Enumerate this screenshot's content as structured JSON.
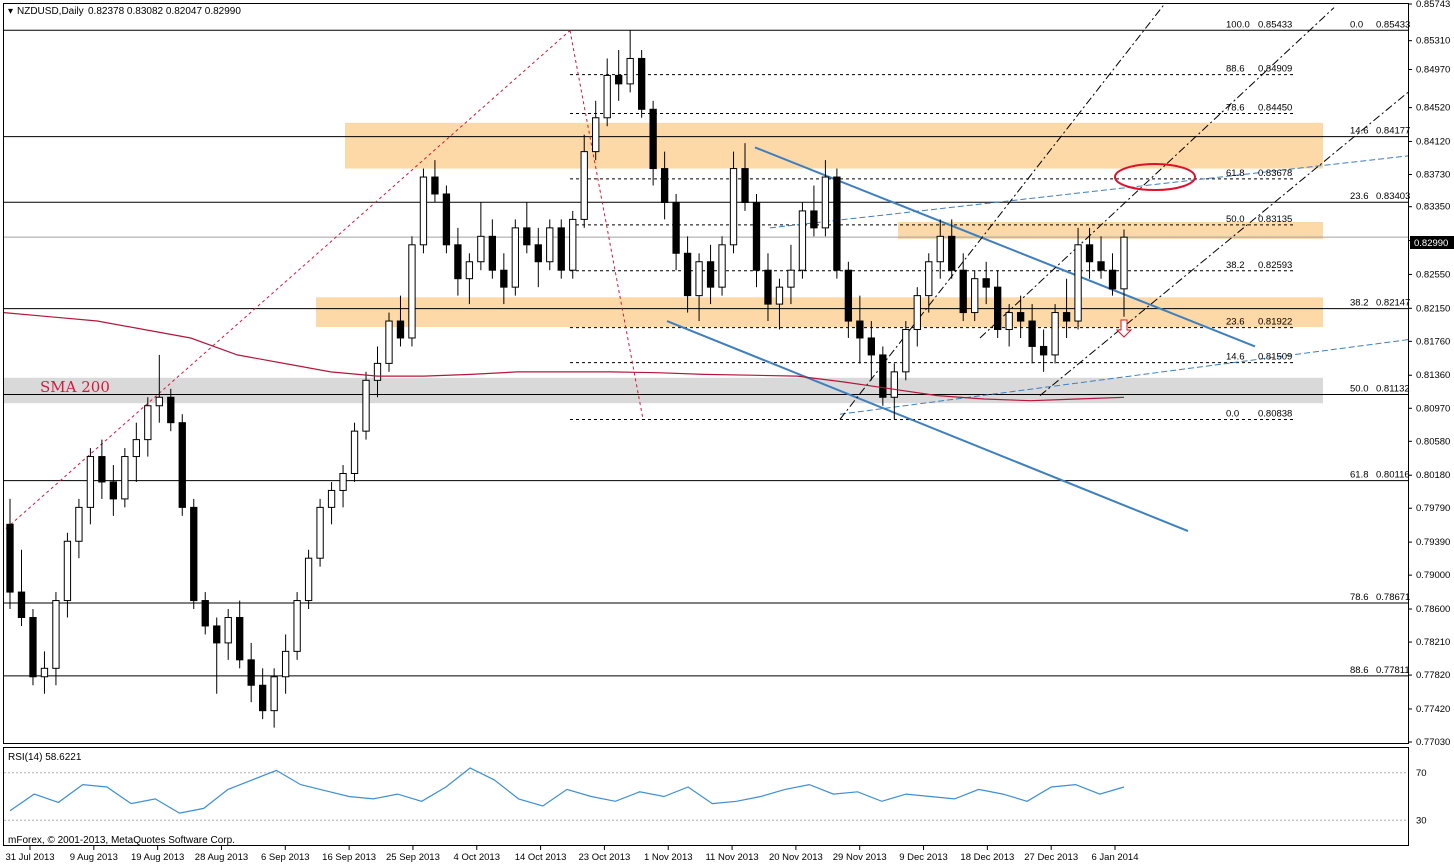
{
  "header": {
    "symbol": "NZDUSD,Daily",
    "ohlc": "0.82378 0.83082 0.82047 0.82990"
  },
  "rsi_label": "RSI(14) 58.6221",
  "sma_label": "SMA 200",
  "copyright": "mForex, © 2001-2013, MetaQuotes Software Corp.",
  "current_price": "0.82990",
  "colors": {
    "zone_orange": "#fcd9a6",
    "zone_gray": "#d9d9d9",
    "trendline": "#3e7fbf",
    "sma": "#b5163a",
    "rsi": "#3d8fd6",
    "marker": "#e0102a"
  },
  "chart_data": {
    "type": "candlestick",
    "y_range": [
      0.7703,
      0.85743
    ],
    "y_ticks": [
      "0.85743",
      "0.85310",
      "0.84970",
      "0.84520",
      "0.84120",
      "0.83730",
      "0.83350",
      "0.82950",
      "0.82550",
      "0.82150",
      "0.81760",
      "0.81360",
      "0.80970",
      "0.80580",
      "0.80180",
      "0.79790",
      "0.79390",
      "0.79000",
      "0.78600",
      "0.78210",
      "0.77820",
      "0.77420",
      "0.77030"
    ],
    "x_labels": [
      "31 Jul 2013",
      "9 Aug 2013",
      "19 Aug 2013",
      "28 Aug 2013",
      "6 Sep 2013",
      "16 Sep 2013",
      "25 Sep 2013",
      "4 Oct 2013",
      "14 Oct 2013",
      "23 Oct 2013",
      "1 Nov 2013",
      "11 Nov 2013",
      "20 Nov 2013",
      "29 Nov 2013",
      "9 Dec 2013",
      "18 Dec 2013",
      "27 Dec 2013",
      "6 Jan 2014"
    ],
    "fib_right": [
      {
        "level": "0.0",
        "price": "0.85433",
        "value": 0.85433
      },
      {
        "level": "14.6",
        "price": "0.84177",
        "value": 0.84177
      },
      {
        "level": "23.6",
        "price": "0.83403",
        "value": 0.83403
      },
      {
        "level": "38.2",
        "price": "0.82147",
        "value": 0.82147
      },
      {
        "level": "50.0",
        "price": "0.81132",
        "value": 0.81132
      },
      {
        "level": "61.8",
        "price": "0.80116",
        "value": 0.80116
      },
      {
        "level": "78.6",
        "price": "0.78671",
        "value": 0.78671
      },
      {
        "level": "88.6",
        "price": "0.77811",
        "value": 0.77811
      }
    ],
    "fib_mid": [
      {
        "level": "100.0",
        "price": "0.85433",
        "value": 0.85433
      },
      {
        "level": "88.6",
        "price": "0.84909",
        "value": 0.84909
      },
      {
        "level": "78.6",
        "price": "0.84450",
        "value": 0.8445
      },
      {
        "level": "61.8",
        "price": "0.83678",
        "value": 0.83678
      },
      {
        "level": "50.0",
        "price": "0.83135",
        "value": 0.83135
      },
      {
        "level": "38.2",
        "price": "0.82593",
        "value": 0.82593
      },
      {
        "level": "23.6",
        "price": "0.81922",
        "value": 0.81922
      },
      {
        "level": "14.6",
        "price": "0.81509",
        "value": 0.81509
      },
      {
        "level": "0.0",
        "price": "0.80838",
        "value": 0.80838
      }
    ],
    "zones": [
      {
        "top": 0.8434,
        "bottom": 0.838
      },
      {
        "top": 0.8317,
        "bottom": 0.8297
      },
      {
        "top": 0.8228,
        "bottom": 0.8193
      },
      {
        "top": 0.8133,
        "bottom": 0.8103
      }
    ],
    "candles": [
      [
        0.796,
        0.799,
        0.786,
        0.788
      ],
      [
        0.788,
        0.793,
        0.784,
        0.785
      ],
      [
        0.785,
        0.786,
        0.777,
        0.778
      ],
      [
        0.778,
        0.781,
        0.776,
        0.779
      ],
      [
        0.779,
        0.788,
        0.777,
        0.787
      ],
      [
        0.787,
        0.795,
        0.785,
        0.794
      ],
      [
        0.794,
        0.799,
        0.792,
        0.798
      ],
      [
        0.798,
        0.805,
        0.796,
        0.804
      ],
      [
        0.804,
        0.806,
        0.799,
        0.801
      ],
      [
        0.801,
        0.803,
        0.797,
        0.799
      ],
      [
        0.799,
        0.805,
        0.798,
        0.804
      ],
      [
        0.804,
        0.808,
        0.801,
        0.806
      ],
      [
        0.806,
        0.811,
        0.804,
        0.81
      ],
      [
        0.81,
        0.816,
        0.808,
        0.811
      ],
      [
        0.811,
        0.812,
        0.807,
        0.808
      ],
      [
        0.808,
        0.809,
        0.797,
        0.798
      ],
      [
        0.798,
        0.799,
        0.786,
        0.787
      ],
      [
        0.787,
        0.788,
        0.783,
        0.784
      ],
      [
        0.784,
        0.785,
        0.776,
        0.782
      ],
      [
        0.782,
        0.786,
        0.78,
        0.785
      ],
      [
        0.785,
        0.787,
        0.779,
        0.78
      ],
      [
        0.78,
        0.782,
        0.775,
        0.777
      ],
      [
        0.777,
        0.779,
        0.773,
        0.774
      ],
      [
        0.774,
        0.779,
        0.772,
        0.778
      ],
      [
        0.778,
        0.783,
        0.776,
        0.781
      ],
      [
        0.781,
        0.788,
        0.78,
        0.787
      ],
      [
        0.787,
        0.793,
        0.786,
        0.792
      ],
      [
        0.792,
        0.799,
        0.791,
        0.798
      ],
      [
        0.798,
        0.801,
        0.796,
        0.8
      ],
      [
        0.8,
        0.803,
        0.798,
        0.802
      ],
      [
        0.802,
        0.808,
        0.801,
        0.807
      ],
      [
        0.807,
        0.814,
        0.806,
        0.813
      ],
      [
        0.813,
        0.817,
        0.811,
        0.815
      ],
      [
        0.815,
        0.821,
        0.814,
        0.82
      ],
      [
        0.82,
        0.823,
        0.817,
        0.818
      ],
      [
        0.818,
        0.83,
        0.817,
        0.829
      ],
      [
        0.829,
        0.838,
        0.828,
        0.837
      ],
      [
        0.837,
        0.839,
        0.834,
        0.835
      ],
      [
        0.835,
        0.836,
        0.828,
        0.829
      ],
      [
        0.829,
        0.831,
        0.823,
        0.825
      ],
      [
        0.825,
        0.828,
        0.822,
        0.827
      ],
      [
        0.827,
        0.834,
        0.826,
        0.83
      ],
      [
        0.83,
        0.832,
        0.825,
        0.826
      ],
      [
        0.826,
        0.828,
        0.822,
        0.824
      ],
      [
        0.824,
        0.832,
        0.823,
        0.831
      ],
      [
        0.831,
        0.834,
        0.828,
        0.829
      ],
      [
        0.829,
        0.831,
        0.824,
        0.827
      ],
      [
        0.827,
        0.832,
        0.826,
        0.831
      ],
      [
        0.831,
        0.832,
        0.825,
        0.826
      ],
      [
        0.826,
        0.833,
        0.825,
        0.832
      ],
      [
        0.832,
        0.842,
        0.831,
        0.84
      ],
      [
        0.84,
        0.846,
        0.839,
        0.844
      ],
      [
        0.844,
        0.851,
        0.843,
        0.849
      ],
      [
        0.849,
        0.852,
        0.846,
        0.848
      ],
      [
        0.848,
        0.8543,
        0.847,
        0.851
      ],
      [
        0.851,
        0.852,
        0.844,
        0.845
      ],
      [
        0.845,
        0.846,
        0.836,
        0.838
      ],
      [
        0.838,
        0.84,
        0.832,
        0.834
      ],
      [
        0.834,
        0.835,
        0.826,
        0.828
      ],
      [
        0.828,
        0.83,
        0.821,
        0.823
      ],
      [
        0.823,
        0.828,
        0.82,
        0.827
      ],
      [
        0.827,
        0.829,
        0.822,
        0.824
      ],
      [
        0.824,
        0.83,
        0.823,
        0.829
      ],
      [
        0.829,
        0.84,
        0.828,
        0.838
      ],
      [
        0.838,
        0.841,
        0.833,
        0.834
      ],
      [
        0.834,
        0.835,
        0.824,
        0.826
      ],
      [
        0.826,
        0.828,
        0.82,
        0.822
      ],
      [
        0.822,
        0.825,
        0.819,
        0.824
      ],
      [
        0.824,
        0.829,
        0.822,
        0.826
      ],
      [
        0.826,
        0.834,
        0.825,
        0.833
      ],
      [
        0.833,
        0.836,
        0.83,
        0.831
      ],
      [
        0.831,
        0.839,
        0.83,
        0.837
      ],
      [
        0.837,
        0.838,
        0.825,
        0.826
      ],
      [
        0.826,
        0.827,
        0.818,
        0.82
      ],
      [
        0.82,
        0.823,
        0.815,
        0.818
      ],
      [
        0.818,
        0.82,
        0.813,
        0.816
      ],
      [
        0.816,
        0.817,
        0.81,
        0.811
      ],
      [
        0.811,
        0.815,
        0.8084,
        0.814
      ],
      [
        0.814,
        0.82,
        0.813,
        0.819
      ],
      [
        0.819,
        0.824,
        0.817,
        0.823
      ],
      [
        0.823,
        0.828,
        0.821,
        0.827
      ],
      [
        0.827,
        0.832,
        0.825,
        0.83
      ],
      [
        0.83,
        0.832,
        0.825,
        0.826
      ],
      [
        0.826,
        0.828,
        0.82,
        0.821
      ],
      [
        0.821,
        0.826,
        0.82,
        0.825
      ],
      [
        0.825,
        0.827,
        0.822,
        0.824
      ],
      [
        0.824,
        0.826,
        0.818,
        0.819
      ],
      [
        0.819,
        0.822,
        0.817,
        0.821
      ],
      [
        0.821,
        0.823,
        0.818,
        0.82
      ],
      [
        0.82,
        0.822,
        0.815,
        0.817
      ],
      [
        0.817,
        0.819,
        0.814,
        0.816
      ],
      [
        0.816,
        0.822,
        0.815,
        0.821
      ],
      [
        0.821,
        0.825,
        0.818,
        0.82
      ],
      [
        0.82,
        0.831,
        0.819,
        0.829
      ],
      [
        0.829,
        0.831,
        0.825,
        0.827
      ],
      [
        0.827,
        0.83,
        0.825,
        0.826
      ],
      [
        0.826,
        0.828,
        0.823,
        0.8238
      ],
      [
        0.8238,
        0.8308,
        0.8205,
        0.8299
      ]
    ],
    "sma200": [
      0.821,
      0.8205,
      0.82,
      0.819,
      0.818,
      0.816,
      0.815,
      0.814,
      0.8135,
      0.8135,
      0.8137,
      0.814,
      0.814,
      0.814,
      0.8139,
      0.8137,
      0.8136,
      0.8135,
      0.8128,
      0.812,
      0.8112,
      0.8108,
      0.8106,
      0.8108,
      0.811
    ],
    "rsi": [
      38,
      52,
      45,
      60,
      58,
      44,
      48,
      36,
      40,
      56,
      64,
      72,
      60,
      55,
      50,
      48,
      52,
      46,
      58,
      74,
      64,
      48,
      42,
      56,
      50,
      46,
      54,
      50,
      58,
      44,
      46,
      50,
      56,
      60,
      52,
      54,
      46,
      52,
      50,
      48,
      56,
      52,
      46,
      58,
      60,
      52,
      58
    ],
    "rsi_levels": [
      "70",
      "30"
    ]
  }
}
